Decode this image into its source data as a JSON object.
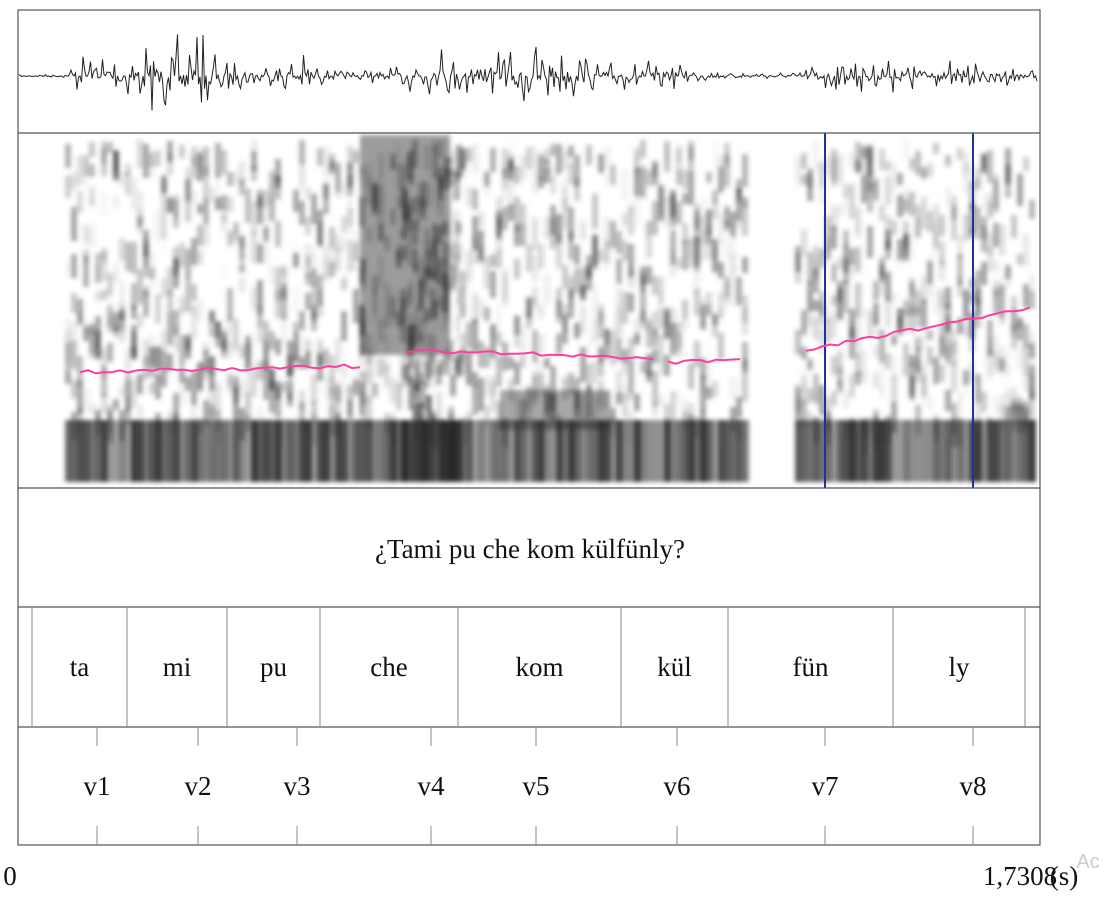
{
  "transcription": "¿Tami pu che kom külfünly?",
  "syllables": [
    "ta",
    "mi",
    "pu",
    "che",
    "kom",
    "kül",
    "fün",
    "ly"
  ],
  "vowels": [
    "v1",
    "v2",
    "v3",
    "v4",
    "v5",
    "v6",
    "v7",
    "v8"
  ],
  "time_axis": {
    "start": "0",
    "end": "1,7308",
    "unit": "(s)"
  },
  "watermark": "Ac"
}
